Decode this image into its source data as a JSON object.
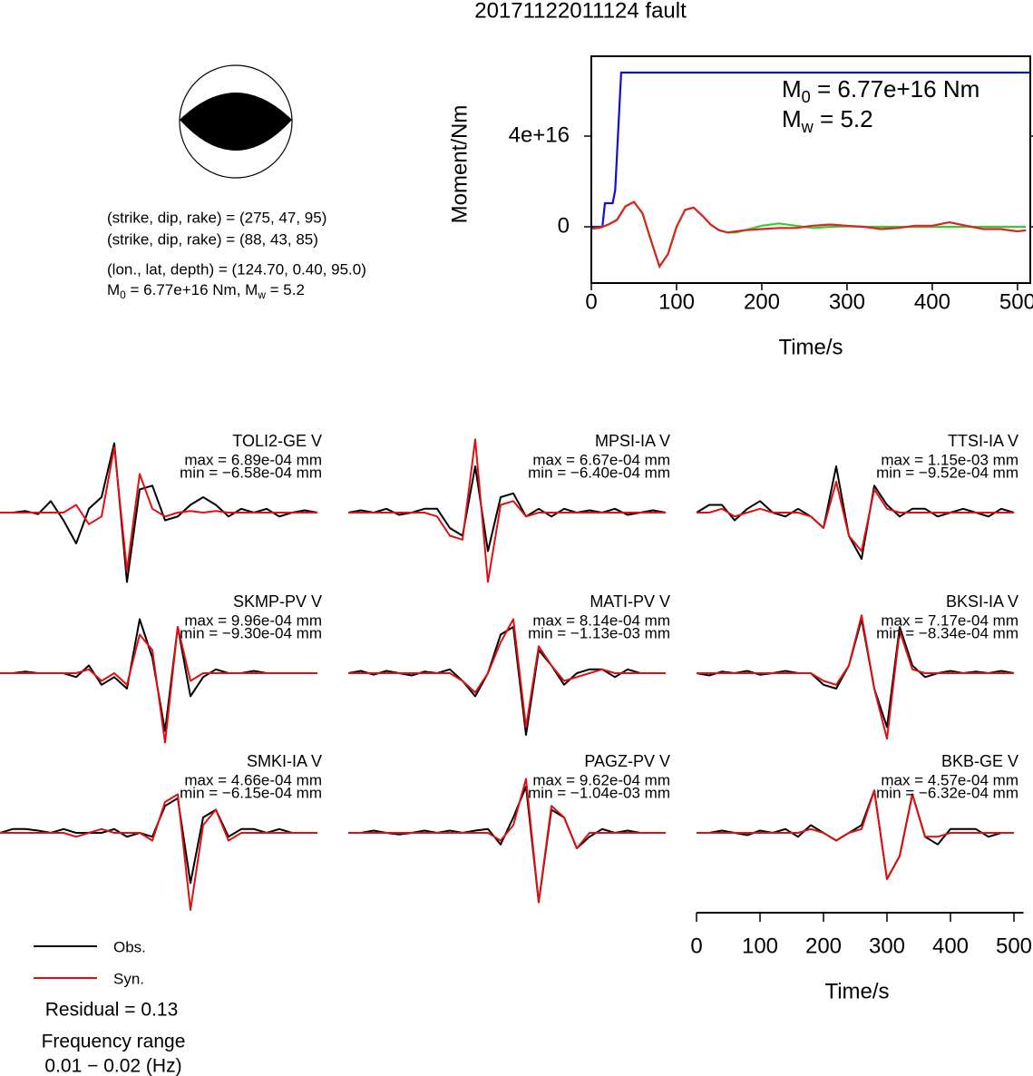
{
  "title": "20171122011124 fault",
  "focal_mechanism": {
    "lines": [
      "(strike, dip, rake) = (275, 47, 95)",
      "(strike, dip, rake) = (88, 43, 85)",
      "(lon., lat, depth) = (124.70, 0.40, 95.0)"
    ],
    "summary": {
      "parts": [
        "M",
        "0",
        " = 6.77e+16 Nm, M",
        "w",
        " = 5.2"
      ]
    }
  },
  "residual": "Residual = 0.13",
  "frequency": {
    "label": "Frequency range",
    "range": "0.01 − 0.02 (Hz)"
  },
  "chart_data": [
    {
      "type": "line",
      "xlabel": "Time/s",
      "ylabel": "Moment/Nm",
      "xlim": [
        0,
        515
      ],
      "xticks": [
        0,
        100,
        200,
        300,
        400,
        500
      ],
      "ylim": [
        -2.48e+16,
        7.52e+16
      ],
      "yticks": [
        0,
        {
          "value": 4e+16,
          "label": "4e+16"
        }
      ],
      "annotations": [
        {
          "parts": [
            "M",
            "0",
            " = 6.77e+16 Nm"
          ]
        },
        {
          "parts": [
            "M",
            "w",
            " = 5.2"
          ]
        }
      ],
      "series": [
        {
          "color": "#1010cc",
          "x": [
            0,
            13,
            16,
            25,
            28,
            35,
            515
          ],
          "values": [
            0,
            0,
            1.04e+16,
            1.04e+16,
            1.6e+16,
            6.8e+16,
            6.8e+16
          ]
        },
        {
          "color": "#33cc33",
          "x": [
            0,
            10,
            20,
            30,
            40,
            50,
            60,
            70,
            80,
            90,
            100,
            110,
            120,
            130,
            140,
            150,
            160,
            170,
            180,
            200,
            220,
            240,
            260,
            280,
            300,
            320,
            340,
            360,
            380,
            400,
            420,
            440,
            460,
            480,
            500,
            510
          ],
          "values": [
            -800000000000000.0,
            -400000000000000.0,
            1000000000000000.0,
            3000000000000000.0,
            9000000000000000.0,
            1.1e+16,
            6000000000000000.0,
            -6000000000000000.0,
            -1.75e+16,
            -1.2e+16,
            0,
            7500000000000000.0,
            8500000000000000.0,
            5000000000000000.0,
            1000000000000000.0,
            -1500000000000000.0,
            -2500000000000000.0,
            -2500000000000000.0,
            -1500000000000000.0,
            500000000000000.0,
            1500000000000000.0,
            500000000000000.0,
            -500000000000000.0,
            0,
            200000000000000.0,
            0,
            0,
            0,
            0,
            0,
            0,
            0,
            0,
            0,
            0,
            0
          ]
        },
        {
          "color": "#dd2222",
          "x": [
            0,
            10,
            20,
            30,
            40,
            50,
            60,
            70,
            80,
            90,
            100,
            110,
            120,
            130,
            140,
            150,
            160,
            170,
            180,
            200,
            220,
            240,
            260,
            280,
            300,
            320,
            340,
            360,
            380,
            400,
            420,
            440,
            460,
            480,
            500,
            510
          ],
          "values": [
            -800000000000000.0,
            -400000000000000.0,
            1000000000000000.0,
            3000000000000000.0,
            9000000000000000.0,
            1.1e+16,
            6000000000000000.0,
            -6000000000000000.0,
            -1.75e+16,
            -1.2e+16,
            0,
            7500000000000000.0,
            8500000000000000.0,
            5000000000000000.0,
            1000000000000000.0,
            -1500000000000000.0,
            -2500000000000000.0,
            -2000000000000000.0,
            -1500000000000000.0,
            -1000000000000000.0,
            -500000000000000.0,
            -500000000000000.0,
            500000000000000.0,
            1000000000000000.0,
            500000000000000.0,
            0,
            -1000000000000000.0,
            -500000000000000.0,
            500000000000000.0,
            500000000000000.0,
            2000000000000000.0,
            500000000000000.0,
            -1000000000000000.0,
            -1000000000000000.0,
            -2000000000000000.0,
            -1500000000000000.0
          ]
        }
      ]
    },
    {
      "type": "waveform",
      "xlabel": "Time/s",
      "xlim": [
        0,
        515
      ],
      "xticks": [
        0,
        100,
        200,
        300,
        400,
        500
      ],
      "x": [
        0,
        20,
        40,
        60,
        80,
        100,
        120,
        140,
        160,
        180,
        200,
        220,
        240,
        260,
        280,
        300,
        320,
        340,
        360,
        380,
        400,
        420,
        440,
        460,
        480,
        500
      ],
      "series": [
        {
          "name": "Obs.",
          "color": "#000000"
        },
        {
          "name": "Syn.",
          "color": "#dd1111"
        }
      ],
      "panels": [
        {
          "station": "TOLI2-GE V",
          "max": "max = 6.89e-04 mm",
          "min": "min = −6.58e-04 mm",
          "obs": [
            0,
            0,
            0.02,
            -0.02,
            0.15,
            -0.1,
            -0.4,
            0.05,
            0.2,
            0.9,
            -0.9,
            0.3,
            0.35,
            -0.1,
            -0.05,
            0.1,
            0.2,
            0.1,
            -0.05,
            0.05,
            0,
            0.05,
            -0.05,
            0,
            0.03,
            0
          ],
          "syn": [
            0,
            0,
            0,
            0,
            0,
            0,
            0.1,
            -0.15,
            -0.05,
            0.85,
            -0.75,
            0.5,
            0.05,
            -0.05,
            0,
            0.02,
            0,
            0.02,
            0,
            0,
            0,
            0,
            0,
            0,
            0,
            0
          ]
        },
        {
          "station": "MPSI-IA V",
          "max": "max = 6.67e-04 mm",
          "min": "min = −6.40e-04 mm",
          "obs": [
            0,
            0.03,
            0,
            0.05,
            -0.03,
            0,
            0.05,
            0.05,
            -0.2,
            -0.3,
            0.6,
            -0.5,
            0.2,
            0.25,
            -0.05,
            0.05,
            -0.05,
            0.05,
            0,
            0.03,
            0,
            0.05,
            -0.03,
            0,
            0.03,
            0
          ],
          "syn": [
            0,
            0,
            0,
            0,
            0,
            0,
            0,
            -0.05,
            -0.3,
            -0.35,
            0.95,
            -0.9,
            0.1,
            0.15,
            -0.05,
            0,
            0,
            0,
            0,
            0,
            0,
            0,
            0,
            0,
            0,
            0
          ]
        },
        {
          "station": "TTSI-IA V",
          "max": "max = 1.15e-03 mm",
          "min": "min = −9.52e-04 mm",
          "obs": [
            0,
            0.1,
            0.1,
            -0.1,
            0.05,
            0.15,
            0,
            -0.05,
            0.05,
            -0.05,
            -0.2,
            0.6,
            -0.3,
            -0.6,
            0.35,
            0.1,
            -0.05,
            0.05,
            0.05,
            -0.05,
            0,
            0.05,
            0,
            -0.05,
            0.05,
            0
          ],
          "syn": [
            0,
            0,
            0.05,
            -0.05,
            0,
            0.05,
            0,
            0,
            0,
            -0.05,
            -0.2,
            0.4,
            -0.3,
            -0.5,
            0.3,
            0.05,
            0,
            0,
            0,
            0,
            0,
            0,
            0,
            0,
            0,
            0
          ]
        },
        {
          "station": "SKMP-PV V",
          "max": "max = 9.96e-04 mm",
          "min": "min = −9.30e-04 mm",
          "obs": [
            0,
            0,
            0.02,
            0,
            0,
            0,
            -0.05,
            0.1,
            -0.15,
            -0.05,
            -0.2,
            0.7,
            0.2,
            -0.75,
            0.6,
            -0.3,
            -0.05,
            0.05,
            0,
            0,
            0.03,
            0,
            0,
            0,
            0,
            0
          ],
          "syn": [
            0,
            0,
            0,
            0,
            0,
            0,
            0,
            0.05,
            -0.1,
            0,
            -0.15,
            0.5,
            0.3,
            -0.9,
            0.6,
            -0.1,
            0,
            0,
            0,
            0,
            0,
            0,
            0,
            0,
            0,
            0
          ]
        },
        {
          "station": "MATI-PV V",
          "max": "max = 8.14e-04 mm",
          "min": "min = −1.13e-03 mm",
          "obs": [
            0,
            0.03,
            -0.02,
            0.03,
            0,
            -0.03,
            0.02,
            0,
            0.05,
            -0.1,
            -0.3,
            0,
            0.5,
            0.6,
            -0.8,
            0.3,
            0.1,
            -0.15,
            0,
            0.05,
            0.05,
            -0.05,
            0.05,
            0,
            0,
            0
          ],
          "syn": [
            0,
            0,
            0,
            0,
            0,
            0,
            0,
            0,
            0,
            -0.1,
            -0.25,
            0,
            0.4,
            0.7,
            -0.7,
            0.35,
            0.1,
            -0.1,
            -0.05,
            0,
            0.05,
            0,
            0,
            0,
            0,
            0
          ]
        },
        {
          "station": "BKSI-IA V",
          "max": "max = 7.17e-04 mm",
          "min": "min = −8.34e-04 mm",
          "obs": [
            0,
            -0.03,
            0.02,
            0,
            0.03,
            -0.02,
            0,
            0.03,
            0,
            0,
            -0.15,
            -0.2,
            0.1,
            0.7,
            -0.2,
            -0.7,
            0.6,
            0.1,
            -0.05,
            0,
            0.03,
            0,
            0.02,
            0,
            0.03,
            0
          ],
          "syn": [
            0,
            0,
            0,
            0,
            0,
            0,
            0,
            0,
            0,
            0,
            -0.1,
            -0.15,
            0.1,
            0.75,
            -0.2,
            -0.85,
            0.55,
            0.05,
            0,
            0,
            0,
            0,
            0,
            0,
            0,
            0
          ]
        },
        {
          "station": "SMKI-IA V",
          "max": "max = 4.66e-04 mm",
          "min": "min = −6.15e-04 mm",
          "obs": [
            0,
            0.05,
            0.05,
            0.03,
            0,
            0.05,
            0,
            0,
            0,
            0.05,
            -0.05,
            0,
            -0.05,
            0.35,
            0.45,
            -0.65,
            0.2,
            0.3,
            -0.05,
            0.05,
            0.05,
            0,
            0.05,
            0,
            0,
            0
          ],
          "syn": [
            0,
            0,
            0,
            0,
            0,
            0,
            -0.05,
            0,
            0.05,
            0,
            0,
            0,
            -0.1,
            0.4,
            0.5,
            -1.0,
            0.1,
            0.3,
            -0.1,
            0,
            0,
            0,
            0,
            0,
            0,
            0
          ]
        },
        {
          "station": "PAGZ-PV V",
          "max": "max = 9.62e-04 mm",
          "min": "min = −1.04e-03 mm",
          "obs": [
            0,
            0,
            0.03,
            0,
            -0.02,
            0,
            0.03,
            0,
            0.03,
            0,
            0.03,
            0.05,
            -0.15,
            0.2,
            0.6,
            -0.9,
            0.3,
            0.2,
            -0.2,
            -0.05,
            0.05,
            0,
            0.03,
            0,
            0,
            0
          ],
          "syn": [
            0,
            0,
            0,
            0,
            0,
            0,
            0,
            0,
            0,
            0,
            0,
            0,
            -0.1,
            0.1,
            0.7,
            -0.9,
            0.35,
            0.2,
            -0.2,
            0,
            0,
            0,
            0,
            0,
            0,
            0
          ]
        },
        {
          "station": "BKB-GE V",
          "max": "max = 4.57e-04 mm",
          "min": "min = −6.32e-04 mm",
          "obs": [
            0,
            0,
            0.03,
            0,
            -0.03,
            0.03,
            0,
            0.05,
            -0.05,
            0.1,
            0,
            -0.1,
            0,
            0.1,
            0.55,
            -0.6,
            -0.3,
            0.5,
            -0.05,
            -0.15,
            0.05,
            0.05,
            0.05,
            -0.05,
            0,
            0
          ],
          "syn": [
            0,
            0,
            0,
            0,
            0,
            0,
            0,
            0,
            0,
            0.05,
            0,
            -0.1,
            0,
            0.05,
            0.55,
            -0.6,
            -0.3,
            0.5,
            -0.05,
            -0.05,
            0,
            0,
            0,
            0,
            0,
            0
          ]
        }
      ]
    }
  ]
}
